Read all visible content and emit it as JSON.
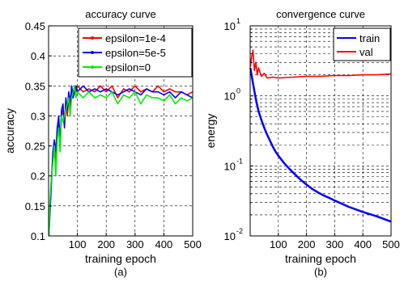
{
  "chart_data": [
    {
      "type": "line",
      "title": "accuracy curve",
      "xlabel": "training epoch",
      "ylabel": "accuracy",
      "caption": "(a)",
      "xlim": [
        0,
        500
      ],
      "ylim": [
        0.1,
        0.45
      ],
      "xticks": [
        100,
        200,
        300,
        400,
        500
      ],
      "xtick_labels": [
        "100",
        "200",
        "300",
        "400",
        "500"
      ],
      "yticks": [
        0.1,
        0.15,
        0.2,
        0.25,
        0.3,
        0.35,
        0.4,
        0.45
      ],
      "ytick_labels": [
        "0.1",
        "0.15",
        "0.2",
        "0.25",
        "0.3",
        "0.35",
        "0.4",
        "0.45"
      ],
      "grid": true,
      "legend_position": "top-right",
      "series": [
        {
          "name": "epsilon=1e-4",
          "color": "#ff0000",
          "x": [
            1,
            5,
            10,
            15,
            20,
            25,
            30,
            35,
            40,
            45,
            50,
            55,
            60,
            65,
            70,
            75,
            80,
            85,
            90,
            95,
            100,
            120,
            140,
            160,
            180,
            200,
            220,
            240,
            260,
            280,
            300,
            320,
            340,
            360,
            380,
            400,
            420,
            440,
            460,
            480,
            500
          ],
          "y": [
            0.11,
            0.15,
            0.2,
            0.23,
            0.25,
            0.22,
            0.27,
            0.29,
            0.26,
            0.3,
            0.31,
            0.29,
            0.32,
            0.3,
            0.33,
            0.31,
            0.34,
            0.33,
            0.35,
            0.34,
            0.35,
            0.34,
            0.345,
            0.34,
            0.35,
            0.34,
            0.35,
            0.33,
            0.345,
            0.34,
            0.35,
            0.34,
            0.345,
            0.34,
            0.35,
            0.34,
            0.345,
            0.34,
            0.34,
            0.335,
            0.34
          ]
        },
        {
          "name": "epsilon=5e-5",
          "color": "#0000ff",
          "x": [
            1,
            5,
            10,
            15,
            20,
            25,
            30,
            35,
            40,
            45,
            50,
            55,
            60,
            65,
            70,
            75,
            80,
            85,
            90,
            95,
            100,
            120,
            140,
            160,
            180,
            200,
            220,
            240,
            260,
            280,
            300,
            320,
            340,
            360,
            380,
            400,
            420,
            440,
            460,
            480,
            500
          ],
          "y": [
            0.1,
            0.14,
            0.19,
            0.24,
            0.26,
            0.24,
            0.28,
            0.3,
            0.25,
            0.31,
            0.32,
            0.28,
            0.33,
            0.31,
            0.34,
            0.32,
            0.35,
            0.33,
            0.34,
            0.35,
            0.34,
            0.35,
            0.34,
            0.345,
            0.34,
            0.345,
            0.34,
            0.335,
            0.34,
            0.345,
            0.34,
            0.335,
            0.345,
            0.34,
            0.34,
            0.335,
            0.34,
            0.33,
            0.34,
            0.335,
            0.33
          ]
        },
        {
          "name": "epsilon=0",
          "color": "#00ee00",
          "x": [
            1,
            5,
            10,
            15,
            20,
            25,
            30,
            35,
            40,
            45,
            50,
            55,
            60,
            65,
            70,
            75,
            80,
            85,
            90,
            95,
            100,
            120,
            140,
            160,
            180,
            200,
            220,
            240,
            260,
            280,
            300,
            320,
            340,
            360,
            380,
            400,
            420,
            440,
            460,
            480,
            500
          ],
          "y": [
            0.1,
            0.16,
            0.2,
            0.22,
            0.25,
            0.2,
            0.26,
            0.28,
            0.24,
            0.3,
            0.29,
            0.3,
            0.31,
            0.32,
            0.33,
            0.3,
            0.33,
            0.34,
            0.35,
            0.33,
            0.34,
            0.33,
            0.34,
            0.33,
            0.335,
            0.33,
            0.34,
            0.32,
            0.335,
            0.33,
            0.34,
            0.32,
            0.335,
            0.33,
            0.33,
            0.325,
            0.335,
            0.32,
            0.33,
            0.325,
            0.33
          ]
        }
      ]
    },
    {
      "type": "line",
      "title": "convergence curve",
      "xlabel": "training epoch",
      "ylabel": "energy",
      "caption": "(b)",
      "xlim": [
        0,
        500
      ],
      "ylim": [
        0.01,
        10
      ],
      "yscale": "log",
      "xticks": [
        100,
        200,
        300,
        400,
        500
      ],
      "xtick_labels": [
        "100",
        "200",
        "300",
        "400",
        "500"
      ],
      "yticks": [
        0.01,
        0.1,
        1,
        10
      ],
      "ytick_labels": [
        {
          "base": "10",
          "exp": "-2"
        },
        {
          "base": "10",
          "exp": "-1"
        },
        {
          "base": "10",
          "exp": "0"
        },
        {
          "base": "10",
          "exp": "1"
        }
      ],
      "grid": true,
      "legend_position": "top-right",
      "series": [
        {
          "name": "train",
          "color": "#0000ff",
          "x": [
            1,
            5,
            10,
            20,
            30,
            40,
            50,
            60,
            70,
            80,
            90,
            100,
            120,
            140,
            160,
            180,
            200,
            220,
            240,
            260,
            280,
            300,
            350,
            400,
            450,
            500
          ],
          "y": [
            2.5,
            2.0,
            1.5,
            0.9,
            0.6,
            0.45,
            0.35,
            0.28,
            0.23,
            0.19,
            0.16,
            0.14,
            0.11,
            0.09,
            0.075,
            0.063,
            0.054,
            0.047,
            0.042,
            0.038,
            0.035,
            0.032,
            0.026,
            0.022,
            0.019,
            0.016
          ]
        },
        {
          "name": "val",
          "color": "#ff0000",
          "x": [
            1,
            5,
            10,
            15,
            20,
            25,
            30,
            40,
            50,
            60,
            80,
            100,
            150,
            200,
            250,
            300,
            350,
            400,
            450,
            500
          ],
          "y": [
            2.6,
            3.5,
            4.5,
            2.3,
            3.0,
            2.0,
            2.5,
            1.9,
            2.1,
            1.8,
            1.85,
            1.8,
            1.85,
            1.9,
            1.9,
            1.95,
            1.95,
            2.0,
            2.0,
            2.05
          ]
        }
      ]
    }
  ]
}
